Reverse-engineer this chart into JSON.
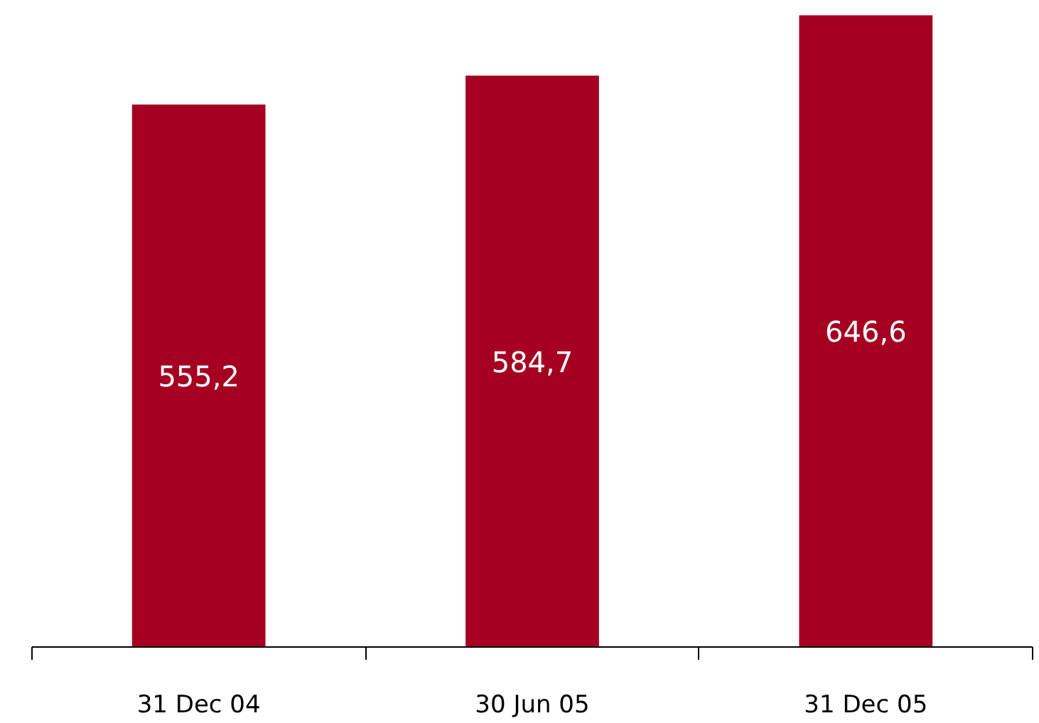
{
  "chart_data": {
    "type": "bar",
    "categories": [
      "31 Dec 04",
      "30 Jun 05",
      "31 Dec 05"
    ],
    "values": [
      555.2,
      584.7,
      646.6
    ],
    "value_labels": [
      "555,2",
      "584,7",
      "646,6"
    ],
    "color": "#a50021",
    "tick_labels": "x"
  }
}
